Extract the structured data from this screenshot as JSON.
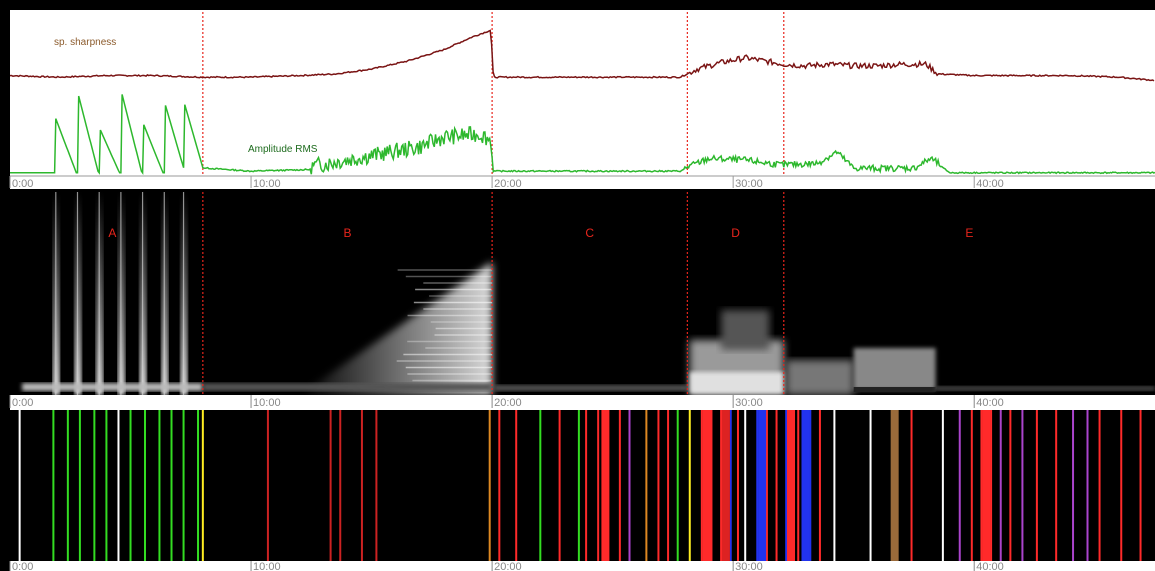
{
  "chart_data": [
    {
      "type": "line",
      "panel": "features",
      "xlim": [
        0,
        47.5
      ],
      "x_ticks": [
        "0:00",
        "10:00",
        "20:00",
        "30:00",
        "40:00"
      ],
      "tick_values": [
        0,
        10,
        20,
        30,
        40
      ],
      "boundaries": [
        8.0,
        20.0,
        28.1,
        32.1
      ],
      "series": [
        {
          "name": "sp. sharpness",
          "color": "#7a1414",
          "points": [
            [
              0,
              0.62
            ],
            [
              2,
              0.61
            ],
            [
              4,
              0.62
            ],
            [
              6,
              0.62
            ],
            [
              8,
              0.61
            ],
            [
              10,
              0.61
            ],
            [
              12,
              0.62
            ],
            [
              13.5,
              0.63
            ],
            [
              15,
              0.66
            ],
            [
              16.5,
              0.71
            ],
            [
              18,
              0.78
            ],
            [
              19.2,
              0.86
            ],
            [
              19.95,
              0.9
            ],
            [
              20.05,
              0.61
            ],
            [
              22,
              0.61
            ],
            [
              25,
              0.61
            ],
            [
              27.8,
              0.61
            ],
            [
              28.5,
              0.66
            ],
            [
              29.5,
              0.7
            ],
            [
              30.5,
              0.73
            ],
            [
              31.3,
              0.71
            ],
            [
              32.1,
              0.69
            ],
            [
              33,
              0.68
            ],
            [
              34,
              0.69
            ],
            [
              35,
              0.68
            ],
            [
              36,
              0.68
            ],
            [
              37,
              0.69
            ],
            [
              38,
              0.69
            ],
            [
              38.5,
              0.63
            ],
            [
              40,
              0.62
            ],
            [
              42,
              0.62
            ],
            [
              44,
              0.62
            ],
            [
              46,
              0.61
            ],
            [
              47.5,
              0.59
            ]
          ]
        },
        {
          "name": "Amplitude RMS",
          "color": "#2db82d",
          "bursts": [
            1.9,
            2.8,
            3.7,
            4.6,
            5.5,
            6.4,
            7.2
          ],
          "points": [
            [
              0,
              0.02
            ],
            [
              8,
              0.05
            ],
            [
              10,
              0.03
            ],
            [
              12.5,
              0.04
            ],
            [
              14,
              0.08
            ],
            [
              15.5,
              0.12
            ],
            [
              17,
              0.16
            ],
            [
              18,
              0.22
            ],
            [
              19.5,
              0.24
            ],
            [
              19.95,
              0.2
            ],
            [
              20.05,
              0.03
            ],
            [
              27.8,
              0.03
            ],
            [
              29,
              0.1
            ],
            [
              30.5,
              0.09
            ],
            [
              32,
              0.06
            ],
            [
              33.5,
              0.07
            ],
            [
              34.3,
              0.14
            ],
            [
              35,
              0.04
            ],
            [
              37.5,
              0.04
            ],
            [
              38.2,
              0.1
            ],
            [
              39,
              0.02
            ],
            [
              47.5,
              0.02
            ]
          ]
        }
      ]
    },
    {
      "type": "heatmap",
      "panel": "spectrogram",
      "segments": [
        "A",
        "B",
        "C",
        "D",
        "E"
      ],
      "x_ticks": [
        "0:00",
        "10:00",
        "20:00",
        "30:00",
        "40:00"
      ]
    },
    {
      "type": "bar",
      "panel": "events",
      "x_ticks": [
        "0:00",
        "10:00",
        "20:00",
        "30:00",
        "40:00"
      ],
      "events": [
        {
          "x": 0.4,
          "color": "#ffffff"
        },
        {
          "x": 1.8,
          "color": "#33dd22"
        },
        {
          "x": 2.4,
          "color": "#33dd22"
        },
        {
          "x": 2.9,
          "color": "#33dd22"
        },
        {
          "x": 3.5,
          "color": "#33dd22"
        },
        {
          "x": 4.0,
          "color": "#33dd22"
        },
        {
          "x": 4.5,
          "color": "#ffffff"
        },
        {
          "x": 5.0,
          "color": "#33dd22"
        },
        {
          "x": 5.6,
          "color": "#33dd22"
        },
        {
          "x": 6.2,
          "color": "#33dd22"
        },
        {
          "x": 6.7,
          "color": "#33dd22"
        },
        {
          "x": 7.2,
          "color": "#33dd22"
        },
        {
          "x": 7.8,
          "color": "#33dd22"
        },
        {
          "x": 8.0,
          "color": "#ffee22"
        },
        {
          "x": 10.7,
          "color": "#cc2222"
        },
        {
          "x": 13.3,
          "color": "#cc2222"
        },
        {
          "x": 13.7,
          "color": "#cc2222"
        },
        {
          "x": 14.6,
          "color": "#cc2222"
        },
        {
          "x": 15.2,
          "color": "#cc2222"
        },
        {
          "x": 19.9,
          "color": "#dd8822"
        },
        {
          "x": 20.3,
          "color": "#ff2a2a"
        },
        {
          "x": 21.0,
          "color": "#ff2a2a"
        },
        {
          "x": 22.0,
          "color": "#33dd22"
        },
        {
          "x": 22.8,
          "color": "#ff2a2a"
        },
        {
          "x": 23.6,
          "color": "#33dd22"
        },
        {
          "x": 23.9,
          "color": "#ff2a2a"
        },
        {
          "x": 24.4,
          "color": "#ff2a2a"
        },
        {
          "x": 25.3,
          "color": "#ff2a2a"
        },
        {
          "x": 25.7,
          "color": "#aa44cc"
        },
        {
          "x": 26.4,
          "color": "#dd8822"
        },
        {
          "x": 26.9,
          "color": "#ff2a2a"
        },
        {
          "x": 27.3,
          "color": "#ff2a2a"
        },
        {
          "x": 27.7,
          "color": "#33dd22"
        },
        {
          "x": 28.2,
          "color": "#ffee22"
        },
        {
          "x": 28.7,
          "color": "#ff2a2a"
        },
        {
          "x": 29.1,
          "color": "#ff2a2a"
        },
        {
          "x": 29.5,
          "color": "#ff2a2a"
        },
        {
          "x": 29.9,
          "color": "#2233ee"
        },
        {
          "x": 30.2,
          "color": "#ff2a2a"
        },
        {
          "x": 30.5,
          "color": "#ffffff"
        },
        {
          "x": 31.0,
          "color": "#2233ee"
        },
        {
          "x": 31.4,
          "color": "#ff2a2a"
        },
        {
          "x": 31.8,
          "color": "#ff2a2a"
        },
        {
          "x": 32.2,
          "color": "#2233ee"
        },
        {
          "x": 32.7,
          "color": "#ff2a2a"
        },
        {
          "x": 33.2,
          "color": "#2233ee"
        },
        {
          "x": 33.6,
          "color": "#ff2a2a"
        },
        {
          "x": 34.2,
          "color": "#ffffff"
        },
        {
          "x": 35.7,
          "color": "#ffffff"
        },
        {
          "x": 36.7,
          "color": "#9a6a3a"
        },
        {
          "x": 37.4,
          "color": "#ff2a2a"
        },
        {
          "x": 38.7,
          "color": "#ffffff"
        },
        {
          "x": 39.4,
          "color": "#aa44cc"
        },
        {
          "x": 39.9,
          "color": "#ff2a2a"
        },
        {
          "x": 40.3,
          "color": "#ff2a2a"
        },
        {
          "x": 40.7,
          "color": "#ff2a2a"
        },
        {
          "x": 41.1,
          "color": "#aa44cc"
        },
        {
          "x": 41.5,
          "color": "#ff2a2a"
        },
        {
          "x": 42.0,
          "color": "#aa44cc"
        },
        {
          "x": 42.6,
          "color": "#ff2a2a"
        },
        {
          "x": 43.4,
          "color": "#ff2a2a"
        },
        {
          "x": 44.1,
          "color": "#aa44cc"
        },
        {
          "x": 44.7,
          "color": "#aa44cc"
        },
        {
          "x": 45.2,
          "color": "#ff2a2a"
        },
        {
          "x": 46.1,
          "color": "#ff2a2a"
        },
        {
          "x": 46.9,
          "color": "#ff2a2a"
        }
      ],
      "wide_events": [
        {
          "x": 24.7,
          "color": "#ff2a2a"
        },
        {
          "x": 28.9,
          "color": "#ff2a2a"
        },
        {
          "x": 29.7,
          "color": "#dd2222"
        },
        {
          "x": 31.2,
          "color": "#2233ee"
        },
        {
          "x": 32.4,
          "color": "#ff2a2a"
        },
        {
          "x": 33.0,
          "color": "#2233ee"
        },
        {
          "x": 36.7,
          "color": "#9a6a3a"
        },
        {
          "x": 40.5,
          "color": "#ff2a2a"
        }
      ]
    }
  ]
}
